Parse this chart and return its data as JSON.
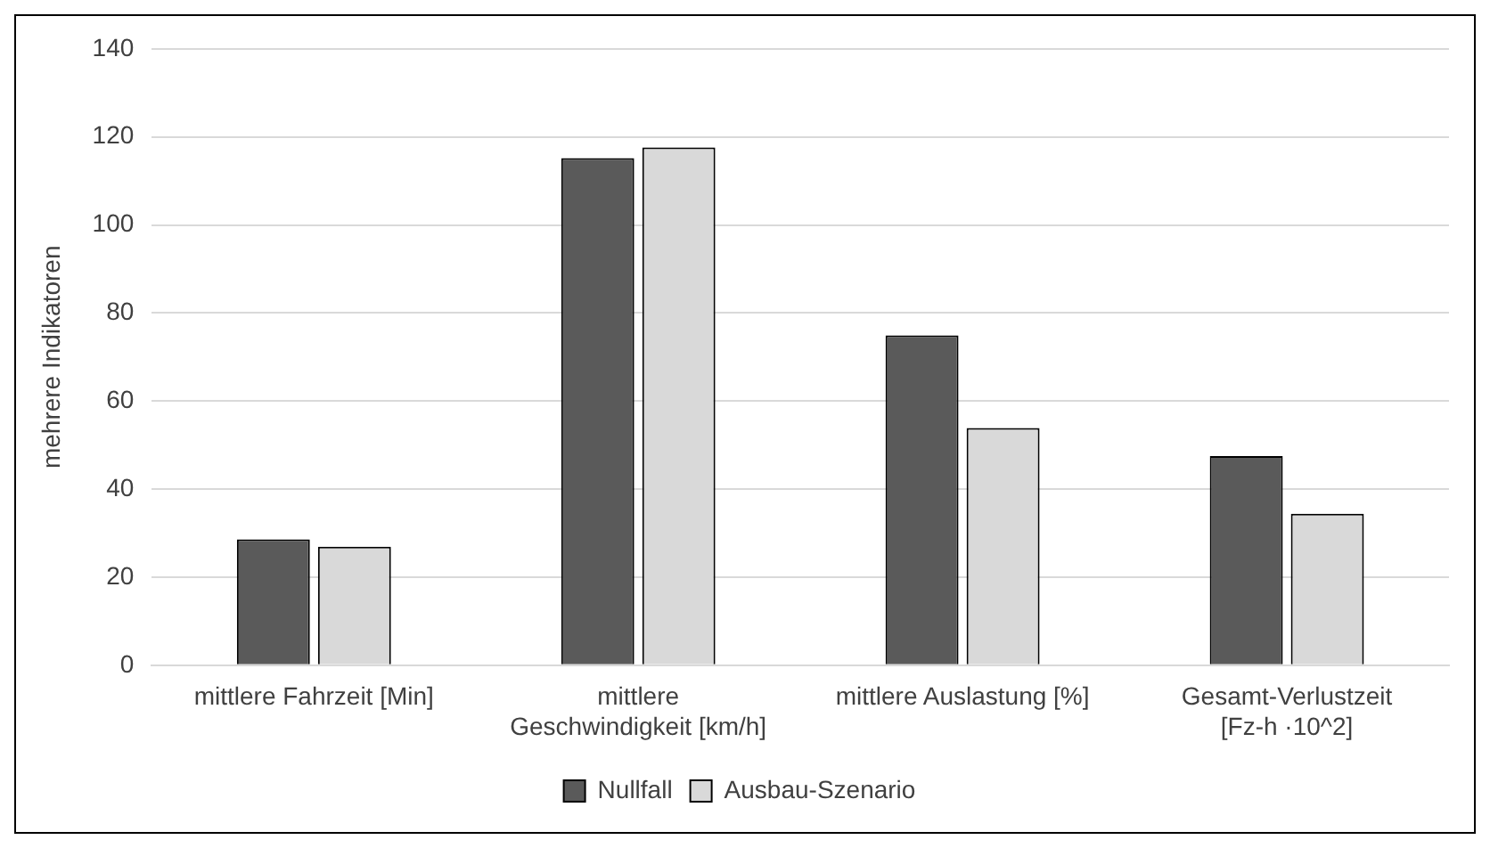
{
  "chart_data": {
    "type": "bar",
    "ylabel": "mehrere Indikatoren",
    "categories": [
      "mittlere Fahrzeit [Min]",
      "mittlere Geschwindigkeit [km/h]",
      "mittlere Auslastung [%]",
      "Gesamt-Verlustzeit [Fz-h ·10^2]"
    ],
    "series": [
      {
        "name": "Nullfall",
        "color": "#5a5a5a",
        "values": [
          28.6,
          115.2,
          74.9,
          47.5
        ]
      },
      {
        "name": "Ausbau-Szenario",
        "color": "#d9d9d9",
        "values": [
          26.9,
          117.6,
          53.9,
          34.4
        ]
      }
    ],
    "ylim": [
      0,
      140
    ],
    "yticks": [
      0,
      20,
      40,
      60,
      80,
      100,
      120,
      140
    ],
    "grid": "y",
    "legend": "bottom"
  }
}
